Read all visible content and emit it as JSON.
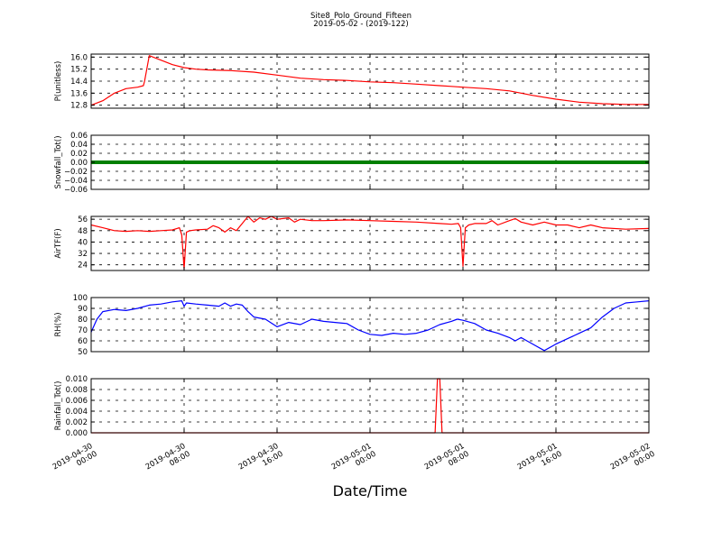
{
  "figure": {
    "title_line1": "Site8_Polo_Ground_Fifteen",
    "title_line2": "2019-05-02 - (2019-122)",
    "xlabel": "Date/Time",
    "x_tick_labels": [
      [
        "2019-04-30",
        "00:00"
      ],
      [
        "2019-04-30",
        "08:00"
      ],
      [
        "2019-04-30",
        "16:00"
      ],
      [
        "2019-05-01",
        "00:00"
      ],
      [
        "2019-05-01",
        "08:00"
      ],
      [
        "2019-05-01",
        "16:00"
      ],
      [
        "2019-05-02",
        "00:00"
      ]
    ]
  },
  "chart_data": [
    {
      "type": "line",
      "ylabel": "P(unitless)",
      "color": "#ff0000",
      "ylim": [
        12.6,
        16.2
      ],
      "yticks": [
        "16.0",
        "15.2",
        "14.4",
        "13.6",
        "12.8"
      ],
      "ytick_values": [
        16.0,
        15.2,
        14.4,
        13.6,
        12.8
      ],
      "x_hours": [
        0,
        1,
        2,
        3,
        4,
        4.5,
        4.6,
        5,
        6,
        7,
        8,
        9,
        10,
        12,
        14,
        16,
        18,
        20,
        22,
        24,
        26,
        28,
        30,
        31,
        32,
        34,
        36,
        37,
        38,
        40,
        42,
        44,
        46,
        48
      ],
      "values": [
        12.8,
        13.1,
        13.6,
        13.9,
        14.0,
        14.1,
        14.4,
        16.1,
        15.8,
        15.5,
        15.3,
        15.2,
        15.15,
        15.1,
        15.0,
        14.8,
        14.6,
        14.5,
        14.45,
        14.35,
        14.3,
        14.2,
        14.1,
        14.05,
        14.0,
        13.9,
        13.75,
        13.6,
        13.45,
        13.2,
        13.0,
        12.9,
        12.85,
        12.85
      ]
    },
    {
      "type": "line",
      "ylabel": "Snowfall_Tot()",
      "color": "#008000",
      "ylim": [
        -0.06,
        0.06
      ],
      "yticks": [
        "0.06",
        "0.04",
        "0.02",
        "0.00",
        "−0.02",
        "−0.04",
        "−0.06"
      ],
      "ytick_values": [
        0.06,
        0.04,
        0.02,
        0.0,
        -0.02,
        -0.04,
        -0.06
      ],
      "x_hours": [
        0,
        48
      ],
      "values": [
        0.0,
        0.0
      ]
    },
    {
      "type": "line",
      "ylabel": "AirTF(F)",
      "color": "#ff0000",
      "ylim": [
        20,
        58
      ],
      "yticks": [
        "56",
        "48",
        "40",
        "32",
        "24"
      ],
      "ytick_values": [
        56,
        48,
        40,
        32,
        24
      ],
      "x_hours": [
        0,
        1,
        2,
        3,
        4,
        5,
        6,
        7,
        7.6,
        7.8,
        8.0,
        8.2,
        8.5,
        9,
        10,
        10.5,
        11,
        11.5,
        12,
        12.5,
        13,
        13.5,
        14,
        14.5,
        15,
        15.5,
        16,
        17,
        17.5,
        18,
        19,
        20,
        22,
        24,
        26,
        28,
        30,
        31,
        31.6,
        31.8,
        32.0,
        32.2,
        32.5,
        33,
        34,
        34.5,
        35,
        36,
        36.5,
        37,
        38,
        39,
        40,
        41,
        42,
        43,
        44,
        46,
        48
      ],
      "values": [
        52,
        50,
        48,
        47.5,
        48,
        47.5,
        48,
        48.5,
        50,
        45,
        21,
        47,
        48,
        48.5,
        49,
        51.5,
        50,
        47,
        50,
        48,
        53,
        58,
        54,
        57,
        56,
        58,
        56,
        57,
        54,
        56,
        55,
        55,
        55.5,
        55,
        54.5,
        54,
        53,
        52.5,
        53,
        50,
        23,
        50,
        52,
        53,
        53,
        55,
        52,
        55,
        56.5,
        54,
        52,
        54,
        52,
        52,
        50,
        52,
        50,
        49,
        49.5
      ]
    },
    {
      "type": "line",
      "ylabel": "RH(%)",
      "color": "#0000ff",
      "ylim": [
        50,
        100
      ],
      "yticks": [
        "100",
        "90",
        "80",
        "70",
        "60",
        "50"
      ],
      "ytick_values": [
        100,
        90,
        80,
        70,
        60,
        50
      ],
      "x_hours": [
        0,
        0.5,
        1,
        2,
        3,
        4,
        5,
        6,
        7,
        7.8,
        8,
        8.2,
        9,
        10,
        11,
        11.5,
        12,
        12.5,
        13,
        13.5,
        14,
        15,
        16,
        17,
        18,
        19,
        20,
        21,
        22,
        23,
        24,
        25,
        26,
        27,
        28,
        29,
        30,
        31,
        31.5,
        32,
        33,
        34,
        35,
        36,
        36.5,
        37,
        37.5,
        38,
        39,
        40,
        41,
        42,
        43,
        44,
        45,
        46,
        47,
        48
      ],
      "values": [
        68,
        80,
        87,
        89,
        88,
        90,
        93,
        94,
        96,
        97,
        92,
        95,
        94,
        93,
        92,
        95,
        92,
        94,
        93,
        87,
        82,
        80,
        73,
        77,
        75,
        80,
        78,
        77,
        76,
        70,
        66,
        65,
        67,
        66,
        67,
        70,
        75,
        78,
        80,
        79,
        76,
        70,
        67,
        63,
        60,
        63,
        60,
        57,
        51,
        57,
        62,
        67,
        72,
        82,
        90,
        95,
        96,
        97
      ]
    },
    {
      "type": "line",
      "ylabel": "Rainfall_Tot()",
      "color": "#ff0000",
      "ylim": [
        0,
        0.01
      ],
      "yticks": [
        "0.010",
        "0.008",
        "0.006",
        "0.004",
        "0.002",
        "0.000"
      ],
      "ytick_values": [
        0.01,
        0.008,
        0.006,
        0.004,
        0.002,
        0.0
      ],
      "x_hours": [
        0,
        29.6,
        29.8,
        30.0,
        30.2,
        48
      ],
      "values": [
        0,
        0,
        0.01,
        0.01,
        0,
        0
      ]
    }
  ]
}
